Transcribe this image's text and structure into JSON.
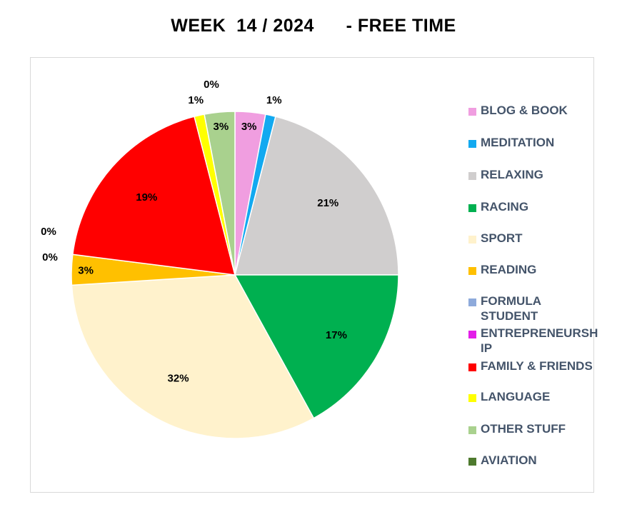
{
  "chart_data": {
    "type": "pie",
    "title": "WEEK  14 / 2024      - FREE TIME",
    "legend_position": "right",
    "slices": [
      {
        "name": "BLOG & BOOK",
        "value": 3,
        "label": "3%",
        "color": "#f09ee0"
      },
      {
        "name": "MEDITATION",
        "value": 1,
        "label": "1%",
        "color": "#12a9f0"
      },
      {
        "name": "RELAXING",
        "value": 21,
        "label": "21%",
        "color": "#d0cece"
      },
      {
        "name": "RACING",
        "value": 17,
        "label": "17%",
        "color": "#00b050"
      },
      {
        "name": "SPORT",
        "value": 32,
        "label": "32%",
        "color": "#fff2cc"
      },
      {
        "name": "READING",
        "value": 3,
        "label": "3%",
        "color": "#ffc000"
      },
      {
        "name": "FORMULA STUDENT",
        "value": 0,
        "label": "0%",
        "color": "#8eaadb"
      },
      {
        "name": "ENTREPRENEURSHIP",
        "value": 0,
        "label": "0%",
        "color": "#e31ee8"
      },
      {
        "name": "FAMILY & FRIENDS",
        "value": 19,
        "label": "19%",
        "color": "#ff0000"
      },
      {
        "name": "LANGUAGE",
        "value": 1,
        "label": "1%",
        "color": "#ffff00"
      },
      {
        "name": "OTHER STUFF",
        "value": 3,
        "label": "3%",
        "color": "#a9d18e"
      },
      {
        "name": "AVIATION",
        "value": 0,
        "label": "0%",
        "color": "#4e7a2e"
      }
    ]
  }
}
